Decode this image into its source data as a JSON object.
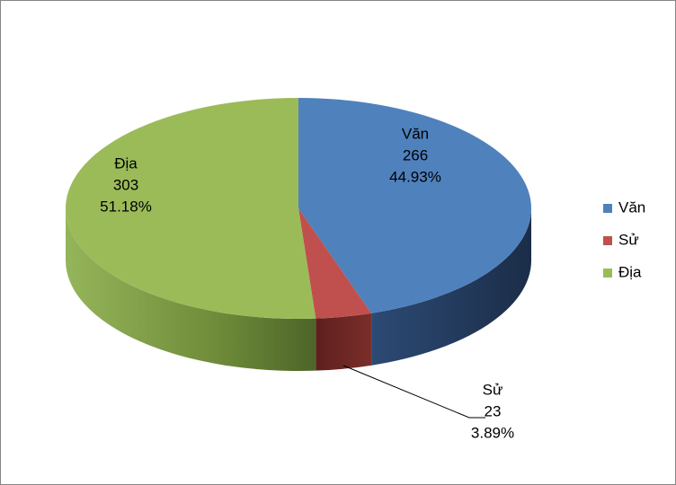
{
  "chart_data": {
    "type": "pie3d",
    "categories": [
      "Văn",
      "Sử",
      "Địa"
    ],
    "values": [
      266,
      23,
      303
    ],
    "percent_labels": [
      "44.93%",
      "3.89%",
      "51.18%"
    ],
    "colors": [
      "#4f81bd",
      "#c0504d",
      "#9bbb59"
    ],
    "legend": "right"
  }
}
